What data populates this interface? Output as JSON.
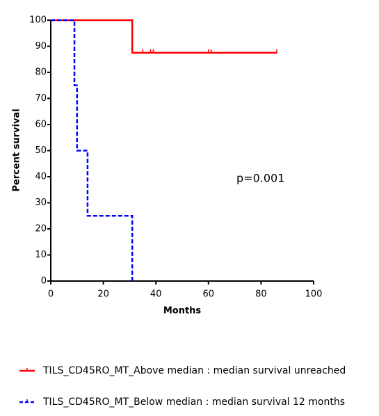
{
  "chart_data": {
    "type": "step",
    "x_label": "Months",
    "y_label": "Percent survival",
    "xlim": [
      0,
      100
    ],
    "xticks": [
      0,
      20,
      40,
      60,
      80,
      100
    ],
    "ylim": [
      0,
      100
    ],
    "yticks": [
      0,
      10,
      20,
      30,
      40,
      50,
      60,
      70,
      80,
      90,
      100
    ],
    "annotation": "p=0.001",
    "series": [
      {
        "name": "TILS_CD45RO_MT_Above median : median survival unreached",
        "color": "#ff0000",
        "dash": false,
        "x": [
          0,
          31,
          31,
          86
        ],
        "values": [
          100,
          100,
          87.5,
          87.5
        ],
        "censored": {
          "x": [
            35,
            38,
            39,
            60,
            61,
            86
          ],
          "values": [
            87.5,
            87.5,
            87.5,
            87.5,
            87.5,
            87.5
          ]
        }
      },
      {
        "name": "TILS_CD45RO_MT_Below median : median survival 12 months",
        "color": "#0000ff",
        "dash": true,
        "x": [
          0,
          9,
          9,
          10,
          10,
          14,
          14,
          31,
          31
        ],
        "values": [
          100,
          100,
          75,
          75,
          50,
          50,
          25,
          25,
          0
        ]
      }
    ]
  }
}
